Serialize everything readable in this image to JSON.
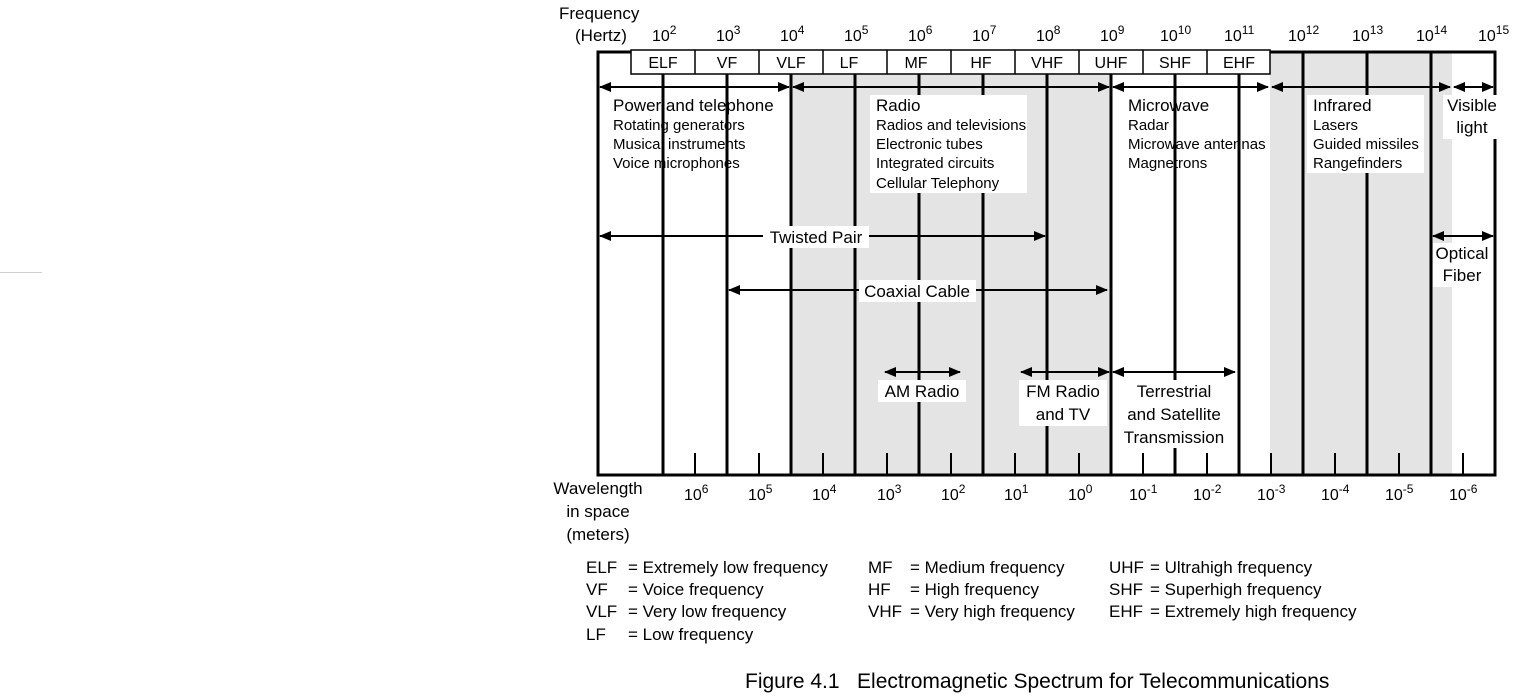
{
  "figure": {
    "caption": "Figure 4.1   Electromagnetic Spectrum for Telecommunications",
    "frequency_axis": {
      "title_line1": "Frequency",
      "title_line2": "(Hertz)",
      "exponents": [
        "2",
        "3",
        "4",
        "5",
        "6",
        "7",
        "8",
        "9",
        "10",
        "11",
        "12",
        "13",
        "14",
        "15"
      ],
      "base": "10"
    },
    "wavelength_axis": {
      "title_line1": "Wavelength",
      "title_line2": "in space",
      "title_line3": "(meters)",
      "exponents": [
        "6",
        "5",
        "4",
        "3",
        "2",
        "1",
        "0",
        "-1",
        "-2",
        "-3",
        "-4",
        "-5",
        "-6"
      ],
      "base": "10"
    },
    "bands": [
      "ELF",
      "VF",
      "VLF",
      "LF",
      "MF",
      "HF",
      "VHF",
      "UHF",
      "SHF",
      "EHF"
    ],
    "regions": {
      "power": {
        "title": "Power and telephone",
        "items": [
          "Rotating generators",
          "Musical instruments",
          "Voice microphones"
        ]
      },
      "radio": {
        "title": "Radio",
        "items": [
          "Radios and televisions",
          "Electronic tubes",
          "Integrated circuits",
          "Cellular Telephony"
        ]
      },
      "microwave": {
        "title": "Microwave",
        "items": [
          "Radar",
          "Microwave antennas",
          "Magnetrons"
        ]
      },
      "infrared": {
        "title": "Infrared",
        "items": [
          "Lasers",
          "Guided missiles",
          "Rangefinders"
        ]
      },
      "visible": {
        "line1": "Visible",
        "line2": "light"
      }
    },
    "media": {
      "twisted_pair": "Twisted Pair",
      "coaxial": "Coaxial Cable",
      "optical_line1": "Optical",
      "optical_line2": "Fiber",
      "am": "AM Radio",
      "fm_line1": "FM Radio",
      "fm_line2": "and TV",
      "terr_line1": "Terrestrial",
      "terr_line2": "and Satellite",
      "terr_line3": "Transmission"
    },
    "legend": [
      {
        "abbr": "ELF",
        "def": "= Extremely low frequency"
      },
      {
        "abbr": "VF",
        "def": "= Voice frequency"
      },
      {
        "abbr": "VLF",
        "def": "= Very low frequency"
      },
      {
        "abbr": "LF",
        "def": "= Low frequency"
      },
      {
        "abbr": "MF",
        "def": "= Medium frequency"
      },
      {
        "abbr": "HF",
        "def": "= High frequency"
      },
      {
        "abbr": "VHF",
        "def": "= Very high frequency"
      },
      {
        "abbr": "UHF",
        "def": "= Ultrahigh frequency"
      },
      {
        "abbr": "SHF",
        "def": "= Superhigh frequency"
      },
      {
        "abbr": "EHF",
        "def": "= Extremely high frequency"
      }
    ]
  }
}
